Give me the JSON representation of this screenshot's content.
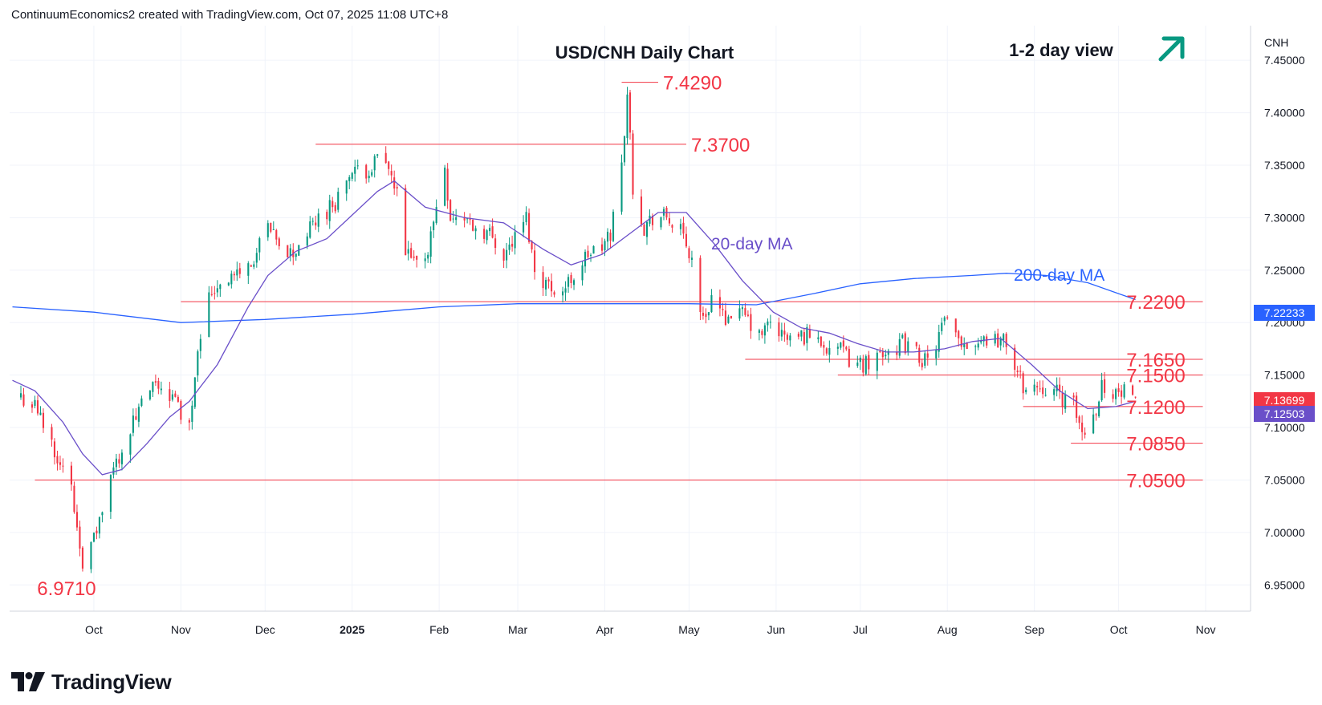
{
  "header": {
    "credit": "ContinuumEconomics2 created with TradingView.com, Oct 07, 2025 11:08 UTC+8"
  },
  "brand": {
    "name": "TradingView",
    "logo_icon": "tradingview-logo-icon"
  },
  "colors": {
    "up": "#089981",
    "down": "#f23645",
    "ma20": "#6a4fc9",
    "ma200": "#2962ff",
    "level": "#f23645",
    "axis_text": "#131722",
    "grid": "#f0f3fa"
  },
  "chart_data": {
    "type": "candlestick",
    "title": "USD/CNH Daily Chart",
    "view_label": "1-2 day view",
    "view_icon": "up-arrow-icon",
    "currency": "CNH",
    "ylim": [
      6.925,
      7.483
    ],
    "y_ticks": [
      "7.45000",
      "7.40000",
      "7.35000",
      "7.30000",
      "7.25000",
      "7.20000",
      "7.15000",
      "7.10000",
      "7.05000",
      "7.00000",
      "6.95000"
    ],
    "x_ticks": [
      "Oct",
      "Nov",
      "Dec",
      "2025",
      "Feb",
      "Mar",
      "Apr",
      "May",
      "Jun",
      "Jul",
      "Aug",
      "Sep",
      "Oct",
      "Nov"
    ],
    "last_price": "7.13699",
    "ma20_value": "7.12503",
    "ma200_value": "7.22233",
    "ma_labels": {
      "ma20": "20-day MA",
      "ma200": "200-day MA"
    },
    "levels": [
      {
        "label": "7.4290",
        "value": 7.429,
        "from": "2025-04-07",
        "to": "2025-04-20"
      },
      {
        "label": "7.3700",
        "value": 7.37,
        "from": "2024-12-19",
        "to": "2025-04-30"
      },
      {
        "label": "7.2200",
        "value": 7.22,
        "from": "2024-11-01",
        "to": "2025-10-31"
      },
      {
        "label": "7.1650",
        "value": 7.165,
        "from": "2025-05-21",
        "to": "2025-10-31"
      },
      {
        "label": "7.1500",
        "value": 7.15,
        "from": "2025-06-23",
        "to": "2025-10-31"
      },
      {
        "label": "7.1200",
        "value": 7.12,
        "from": "2025-08-28",
        "to": "2025-10-31"
      },
      {
        "label": "7.0850",
        "value": 7.085,
        "from": "2025-09-14",
        "to": "2025-10-31"
      },
      {
        "label": "7.0500",
        "value": 7.05,
        "from": "2024-09-10",
        "to": "2025-10-31"
      }
    ],
    "extra_labels": [
      {
        "label": "6.9710",
        "value": 6.971,
        "date": "2024-09-27"
      }
    ],
    "price_path": [
      [
        "2024-09-05",
        7.13
      ],
      [
        "2024-09-10",
        7.12
      ],
      [
        "2024-09-17",
        7.08
      ],
      [
        "2024-09-23",
        7.04
      ],
      [
        "2024-09-27",
        6.974
      ],
      [
        "2024-09-30",
        6.985
      ],
      [
        "2024-10-04",
        7.02
      ],
      [
        "2024-10-08",
        7.06
      ],
      [
        "2024-10-11",
        7.08
      ],
      [
        "2024-10-16",
        7.11
      ],
      [
        "2024-10-21",
        7.135
      ],
      [
        "2024-10-25",
        7.14
      ],
      [
        "2024-10-30",
        7.125
      ],
      [
        "2024-11-04",
        7.1
      ],
      [
        "2024-11-07",
        7.18
      ],
      [
        "2024-11-11",
        7.225
      ],
      [
        "2024-11-15",
        7.24
      ],
      [
        "2024-11-20",
        7.245
      ],
      [
        "2024-11-26",
        7.255
      ],
      [
        "2024-12-02",
        7.29
      ],
      [
        "2024-12-06",
        7.27
      ],
      [
        "2024-12-11",
        7.265
      ],
      [
        "2024-12-16",
        7.285
      ],
      [
        "2024-12-20",
        7.3
      ],
      [
        "2024-12-26",
        7.315
      ],
      [
        "2024-12-31",
        7.34
      ],
      [
        "2025-01-06",
        7.345
      ],
      [
        "2025-01-10",
        7.355
      ],
      [
        "2025-01-14",
        7.345
      ],
      [
        "2025-01-17",
        7.32
      ],
      [
        "2025-01-20",
        7.265
      ],
      [
        "2025-01-24",
        7.255
      ],
      [
        "2025-01-28",
        7.27
      ],
      [
        "2025-02-03",
        7.35
      ],
      [
        "2025-02-05",
        7.3
      ],
      [
        "2025-02-10",
        7.3
      ],
      [
        "2025-02-14",
        7.29
      ],
      [
        "2025-02-19",
        7.285
      ],
      [
        "2025-02-24",
        7.265
      ],
      [
        "2025-02-28",
        7.28
      ],
      [
        "2025-03-04",
        7.3
      ],
      [
        "2025-03-07",
        7.25
      ],
      [
        "2025-03-12",
        7.235
      ],
      [
        "2025-03-17",
        7.23
      ],
      [
        "2025-03-21",
        7.245
      ],
      [
        "2025-03-26",
        7.265
      ],
      [
        "2025-03-31",
        7.27
      ],
      [
        "2025-04-03",
        7.285
      ],
      [
        "2025-04-07",
        7.35
      ],
      [
        "2025-04-09",
        7.42
      ],
      [
        "2025-04-11",
        7.33
      ],
      [
        "2025-04-15",
        7.29
      ],
      [
        "2025-04-18",
        7.3
      ],
      [
        "2025-04-23",
        7.3
      ],
      [
        "2025-04-28",
        7.285
      ],
      [
        "2025-05-02",
        7.26
      ],
      [
        "2025-05-06",
        7.2
      ],
      [
        "2025-05-09",
        7.225
      ],
      [
        "2025-05-13",
        7.205
      ],
      [
        "2025-05-16",
        7.21
      ],
      [
        "2025-05-21",
        7.205
      ],
      [
        "2025-05-26",
        7.185
      ],
      [
        "2025-05-30",
        7.2
      ],
      [
        "2025-06-04",
        7.185
      ],
      [
        "2025-06-09",
        7.185
      ],
      [
        "2025-06-13",
        7.19
      ],
      [
        "2025-06-18",
        7.18
      ],
      [
        "2025-06-23",
        7.175
      ],
      [
        "2025-06-27",
        7.165
      ],
      [
        "2025-07-02",
        7.16
      ],
      [
        "2025-07-07",
        7.17
      ],
      [
        "2025-07-11",
        7.175
      ],
      [
        "2025-07-16",
        7.18
      ],
      [
        "2025-07-21",
        7.17
      ],
      [
        "2025-07-25",
        7.16
      ],
      [
        "2025-07-28",
        7.18
      ],
      [
        "2025-07-31",
        7.2
      ],
      [
        "2025-08-04",
        7.185
      ],
      [
        "2025-08-08",
        7.18
      ],
      [
        "2025-08-13",
        7.185
      ],
      [
        "2025-08-18",
        7.185
      ],
      [
        "2025-08-22",
        7.18
      ],
      [
        "2025-08-26",
        7.15
      ],
      [
        "2025-08-29",
        7.135
      ],
      [
        "2025-09-03",
        7.14
      ],
      [
        "2025-09-08",
        7.135
      ],
      [
        "2025-09-12",
        7.125
      ],
      [
        "2025-09-15",
        7.12
      ],
      [
        "2025-09-18",
        7.095
      ],
      [
        "2025-09-22",
        7.11
      ],
      [
        "2025-09-25",
        7.14
      ],
      [
        "2025-09-29",
        7.135
      ],
      [
        "2025-10-02",
        7.13
      ],
      [
        "2025-10-06",
        7.14
      ],
      [
        "2025-10-07",
        7.137
      ]
    ],
    "ma20_path": [
      [
        "2024-09-02",
        7.145
      ],
      [
        "2024-09-10",
        7.135
      ],
      [
        "2024-09-20",
        7.105
      ],
      [
        "2024-09-27",
        7.075
      ],
      [
        "2024-10-04",
        7.055
      ],
      [
        "2024-10-11",
        7.06
      ],
      [
        "2024-10-20",
        7.085
      ],
      [
        "2024-10-28",
        7.11
      ],
      [
        "2024-11-04",
        7.125
      ],
      [
        "2024-11-14",
        7.16
      ],
      [
        "2024-11-25",
        7.215
      ],
      [
        "2024-12-02",
        7.245
      ],
      [
        "2024-12-12",
        7.268
      ],
      [
        "2024-12-23",
        7.28
      ],
      [
        "2025-01-02",
        7.305
      ],
      [
        "2025-01-10",
        7.325
      ],
      [
        "2025-01-16",
        7.335
      ],
      [
        "2025-01-27",
        7.31
      ],
      [
        "2025-02-10",
        7.3
      ],
      [
        "2025-02-24",
        7.295
      ],
      [
        "2025-03-10",
        7.27
      ],
      [
        "2025-03-20",
        7.255
      ],
      [
        "2025-03-31",
        7.265
      ],
      [
        "2025-04-10",
        7.285
      ],
      [
        "2025-04-20",
        7.305
      ],
      [
        "2025-04-30",
        7.305
      ],
      [
        "2025-05-10",
        7.275
      ],
      [
        "2025-05-20",
        7.24
      ],
      [
        "2025-05-31",
        7.21
      ],
      [
        "2025-06-10",
        7.195
      ],
      [
        "2025-06-20",
        7.19
      ],
      [
        "2025-06-30",
        7.18
      ],
      [
        "2025-07-10",
        7.172
      ],
      [
        "2025-07-20",
        7.172
      ],
      [
        "2025-07-31",
        7.175
      ],
      [
        "2025-08-10",
        7.182
      ],
      [
        "2025-08-20",
        7.185
      ],
      [
        "2025-08-31",
        7.16
      ],
      [
        "2025-09-10",
        7.135
      ],
      [
        "2025-09-20",
        7.118
      ],
      [
        "2025-09-30",
        7.12
      ],
      [
        "2025-10-07",
        7.125
      ]
    ],
    "ma200_path": [
      [
        "2024-09-02",
        7.215
      ],
      [
        "2024-10-01",
        7.21
      ],
      [
        "2024-11-01",
        7.2
      ],
      [
        "2024-12-01",
        7.203
      ],
      [
        "2025-01-01",
        7.208
      ],
      [
        "2025-02-01",
        7.215
      ],
      [
        "2025-03-01",
        7.218
      ],
      [
        "2025-04-01",
        7.218
      ],
      [
        "2025-05-01",
        7.218
      ],
      [
        "2025-05-25",
        7.217
      ],
      [
        "2025-06-15",
        7.228
      ],
      [
        "2025-07-01",
        7.237
      ],
      [
        "2025-07-20",
        7.242
      ],
      [
        "2025-08-10",
        7.245
      ],
      [
        "2025-08-22",
        7.247
      ],
      [
        "2025-09-05",
        7.245
      ],
      [
        "2025-09-20",
        7.238
      ],
      [
        "2025-10-07",
        7.222
      ]
    ]
  }
}
